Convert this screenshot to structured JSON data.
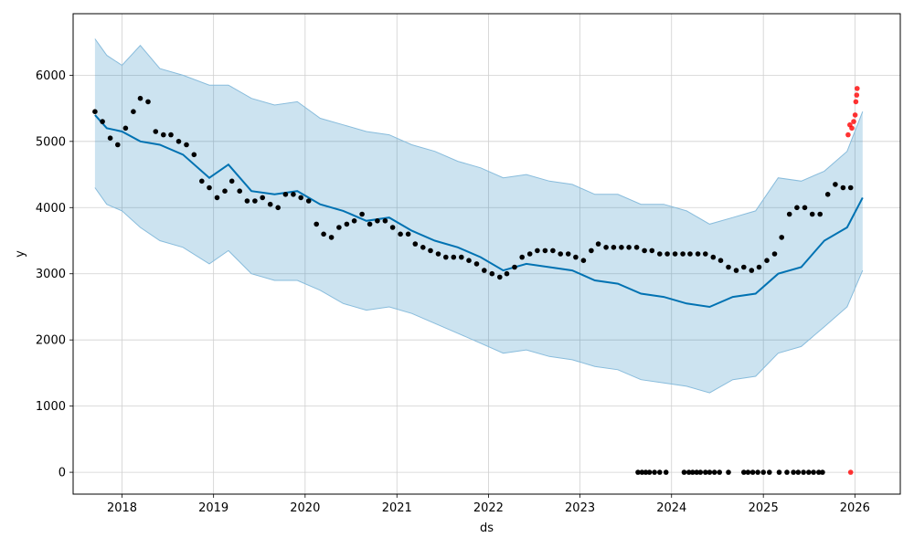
{
  "chart_data": {
    "type": "line",
    "xlabel": "ds",
    "ylabel": "y",
    "xlim": [
      "2017-06-20",
      "2026-07-01"
    ],
    "ylim": [
      -330,
      6930
    ],
    "grid": true,
    "x_ticks": [
      "2018",
      "2019",
      "2020",
      "2021",
      "2022",
      "2023",
      "2024",
      "2025",
      "2026"
    ],
    "y_ticks": [
      0,
      1000,
      2000,
      3000,
      4000,
      5000,
      6000
    ],
    "colors": {
      "forecast": "#0072B2",
      "band_fill": "#0072B2",
      "band_edge": "#88BCDC",
      "actual": "#000000",
      "holdout": "#FF0000"
    },
    "forecast": {
      "x": [
        "2017-09-15",
        "2017-11-01",
        "2018-01-01",
        "2018-03-15",
        "2018-06-01",
        "2018-09-01",
        "2018-12-15",
        "2019-03-01",
        "2019-06-01",
        "2019-09-01",
        "2019-12-01",
        "2020-03-01",
        "2020-06-01",
        "2020-09-01",
        "2020-12-01",
        "2021-03-01",
        "2021-06-01",
        "2021-09-01",
        "2021-12-01",
        "2022-03-01",
        "2022-06-01",
        "2022-09-01",
        "2022-12-01",
        "2023-03-01",
        "2023-06-01",
        "2023-09-01",
        "2023-12-01",
        "2024-03-01",
        "2024-06-01",
        "2024-09-01",
        "2024-12-01",
        "2025-03-01",
        "2025-06-01",
        "2025-09-01",
        "2025-12-01",
        "2026-02-01"
      ],
      "y": [
        5400,
        5200,
        5150,
        5000,
        4950,
        4800,
        4450,
        4650,
        4250,
        4200,
        4250,
        4050,
        3950,
        3800,
        3850,
        3650,
        3500,
        3400,
        3250,
        3050,
        3150,
        3100,
        3050,
        2900,
        2850,
        2700,
        2650,
        2550,
        2500,
        2650,
        2700,
        3000,
        3100,
        3500,
        3700,
        4150
      ]
    },
    "uncertainty_band": {
      "x": [
        "2017-09-15",
        "2017-11-01",
        "2018-01-01",
        "2018-03-15",
        "2018-06-01",
        "2018-09-01",
        "2018-12-15",
        "2019-03-01",
        "2019-06-01",
        "2019-09-01",
        "2019-12-01",
        "2020-03-01",
        "2020-06-01",
        "2020-09-01",
        "2020-12-01",
        "2021-03-01",
        "2021-06-01",
        "2021-09-01",
        "2021-12-01",
        "2022-03-01",
        "2022-06-01",
        "2022-09-01",
        "2022-12-01",
        "2023-03-01",
        "2023-06-01",
        "2023-09-01",
        "2023-12-01",
        "2024-03-01",
        "2024-06-01",
        "2024-09-01",
        "2024-12-01",
        "2025-03-01",
        "2025-06-01",
        "2025-09-01",
        "2025-12-01",
        "2026-02-01"
      ],
      "upper": [
        6550,
        6300,
        6150,
        6450,
        6100,
        6000,
        5850,
        5850,
        5650,
        5550,
        5600,
        5350,
        5250,
        5150,
        5100,
        4950,
        4850,
        4700,
        4600,
        4450,
        4500,
        4400,
        4350,
        4200,
        4200,
        4050,
        4050,
        3950,
        3750,
        3850,
        3950,
        4450,
        4400,
        4550,
        4850,
        5450
      ],
      "lower": [
        4300,
        4050,
        3950,
        3700,
        3500,
        3400,
        3150,
        3350,
        3000,
        2900,
        2900,
        2750,
        2550,
        2450,
        2500,
        2400,
        2250,
        2100,
        1950,
        1800,
        1850,
        1750,
        1700,
        1600,
        1550,
        1400,
        1350,
        1300,
        1200,
        1400,
        1450,
        1800,
        1900,
        2200,
        2500,
        3050
      ]
    },
    "actual": {
      "x": [
        "2017-09-15",
        "2017-10-15",
        "2017-11-15",
        "2017-12-15",
        "2018-01-15",
        "2018-02-15",
        "2018-03-15",
        "2018-04-15",
        "2018-05-15",
        "2018-06-15",
        "2018-07-15",
        "2018-08-15",
        "2018-09-15",
        "2018-10-15",
        "2018-11-15",
        "2018-12-15",
        "2019-01-15",
        "2019-02-15",
        "2019-03-15",
        "2019-04-15",
        "2019-05-15",
        "2019-06-15",
        "2019-07-15",
        "2019-08-15",
        "2019-09-15",
        "2019-10-15",
        "2019-11-15",
        "2019-12-15",
        "2020-01-15",
        "2020-02-15",
        "2020-03-15",
        "2020-04-15",
        "2020-05-15",
        "2020-06-15",
        "2020-07-15",
        "2020-08-15",
        "2020-09-15",
        "2020-10-15",
        "2020-11-15",
        "2020-12-15",
        "2021-01-15",
        "2021-02-15",
        "2021-03-15",
        "2021-04-15",
        "2021-05-15",
        "2021-06-15",
        "2021-07-15",
        "2021-08-15",
        "2021-09-15",
        "2021-10-15",
        "2021-11-15",
        "2021-12-15",
        "2022-01-15",
        "2022-02-15",
        "2022-03-15",
        "2022-04-15",
        "2022-05-15",
        "2022-06-15",
        "2022-07-15",
        "2022-08-15",
        "2022-09-15",
        "2022-10-15",
        "2022-11-15",
        "2022-12-15",
        "2023-01-15",
        "2023-02-15",
        "2023-03-15",
        "2023-04-15",
        "2023-05-15",
        "2023-06-15",
        "2023-07-15",
        "2023-08-15",
        "2023-09-15",
        "2023-10-15",
        "2023-11-15",
        "2023-12-15",
        "2024-01-15",
        "2024-02-15",
        "2024-03-15",
        "2024-04-15",
        "2024-05-15",
        "2024-06-15",
        "2024-07-15",
        "2024-08-15",
        "2024-09-15",
        "2024-10-15",
        "2024-11-15",
        "2024-12-15",
        "2025-01-15",
        "2025-02-15",
        "2025-03-15",
        "2025-04-15",
        "2025-05-15",
        "2025-06-15",
        "2025-07-15",
        "2025-08-15",
        "2025-09-15",
        "2025-10-15",
        "2025-11-15",
        "2025-12-15"
      ],
      "y": [
        5450,
        5300,
        5050,
        4950,
        5200,
        5450,
        5650,
        5600,
        5150,
        5100,
        5100,
        5000,
        4950,
        4800,
        4400,
        4300,
        4150,
        4250,
        4400,
        4250,
        4100,
        4100,
        4150,
        4050,
        4000,
        4200,
        4200,
        4150,
        4100,
        3750,
        3600,
        3550,
        3700,
        3750,
        3800,
        3900,
        3750,
        3800,
        3800,
        3700,
        3600,
        3600,
        3450,
        3400,
        3350,
        3300,
        3250,
        3250,
        3250,
        3200,
        3150,
        3050,
        3000,
        2950,
        3000,
        3100,
        3250,
        3300,
        3350,
        3350,
        3350,
        3300,
        3300,
        3250,
        3200,
        3350,
        3450,
        3400,
        3400,
        3400,
        3400,
        3400,
        3350,
        3350,
        3300,
        3300,
        3300,
        3300,
        3300,
        3300,
        3300,
        3250,
        3200,
        3100,
        3050,
        3100,
        3050,
        3100,
        3200,
        3300,
        3550,
        3900,
        4000,
        4000,
        3900,
        3900,
        4200,
        4350,
        4300,
        4300
      ]
    },
    "zero_observations": {
      "x": [
        "2023-08-20",
        "2023-09-05",
        "2023-09-20",
        "2023-10-05",
        "2023-10-25",
        "2023-11-15",
        "2023-12-10",
        "2024-02-20",
        "2024-03-10",
        "2024-03-25",
        "2024-04-10",
        "2024-04-25",
        "2024-05-15",
        "2024-06-01",
        "2024-06-20",
        "2024-07-10",
        "2024-08-15",
        "2024-10-15",
        "2024-11-01",
        "2024-11-20",
        "2024-12-10",
        "2025-01-01",
        "2025-01-25",
        "2025-03-05",
        "2025-04-05",
        "2025-05-01",
        "2025-05-20",
        "2025-06-10",
        "2025-07-01",
        "2025-07-20",
        "2025-08-10",
        "2025-08-25"
      ],
      "y": [
        0,
        0,
        0,
        0,
        0,
        0,
        0,
        0,
        0,
        0,
        0,
        0,
        0,
        0,
        0,
        0,
        0,
        0,
        0,
        0,
        0,
        0,
        0,
        0,
        0,
        0,
        0,
        0,
        0,
        0,
        0,
        0
      ]
    },
    "holdout": {
      "x": [
        "2025-12-05",
        "2025-12-12",
        "2025-12-20",
        "2025-12-27",
        "2026-01-02",
        "2026-01-05",
        "2026-01-08",
        "2026-01-10",
        "2025-12-15"
      ],
      "y": [
        5100,
        5250,
        5200,
        5300,
        5400,
        5600,
        5700,
        5800,
        0
      ]
    }
  }
}
